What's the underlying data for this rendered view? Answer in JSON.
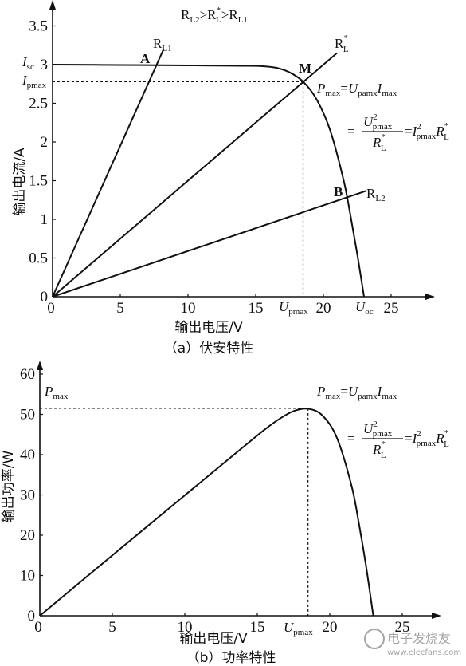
{
  "chart_data": [
    {
      "type": "line",
      "caption": "（a）伏安特性",
      "xlabel": "输出电压/V",
      "ylabel": "输出电流/A",
      "xlim": [
        0,
        27
      ],
      "ylim": [
        0,
        3.7
      ],
      "x_ticks": [
        "0",
        "5",
        "10",
        "15",
        "20",
        "25"
      ],
      "y_ticks": [
        "0",
        "0.5",
        "1",
        "1.5",
        "2",
        "2.5",
        "3",
        "3.5"
      ],
      "condition": "RL2>RL*>RL1",
      "series": [
        {
          "name": "I-V",
          "x": [
            0,
            5,
            10,
            14,
            15.5,
            16.5,
            17.5,
            18.5,
            19.5,
            20.5,
            21.5,
            22,
            22.5,
            23
          ],
          "y": [
            3.0,
            2.995,
            2.99,
            2.985,
            2.98,
            2.96,
            2.9,
            2.78,
            2.55,
            2.15,
            1.5,
            1.05,
            0.55,
            0.0
          ]
        },
        {
          "name": "RL1",
          "x": [
            0,
            8.2
          ],
          "y": [
            0,
            3.2
          ]
        },
        {
          "name": "RL*",
          "x": [
            0,
            21
          ],
          "y": [
            0,
            3.15
          ]
        },
        {
          "name": "RL2",
          "x": [
            0,
            23.2
          ],
          "y": [
            0,
            1.37
          ]
        }
      ],
      "points": [
        {
          "name": "A",
          "x": 7.7,
          "y": 3.0
        },
        {
          "name": "M",
          "x": 18.5,
          "y": 2.78
        },
        {
          "name": "B",
          "x": 22.2,
          "y": 1.3
        }
      ],
      "markers": {
        "Isc": 3.0,
        "Ipmax": 2.78,
        "Upmax": 18.5,
        "Uoc": 23.0
      }
    },
    {
      "type": "line",
      "caption": "（b）功率特性",
      "xlabel": "输出电压/V",
      "ylabel": "输出功率/W",
      "xlim": [
        0,
        27
      ],
      "ylim": [
        0,
        62
      ],
      "x_ticks": [
        "0",
        "5",
        "10",
        "15",
        "20",
        "25"
      ],
      "y_ticks": [
        "0",
        "10",
        "20",
        "30",
        "40",
        "50",
        "60"
      ],
      "series": [
        {
          "name": "P-V",
          "x": [
            0,
            5,
            10,
            14,
            15.5,
            16.5,
            17.5,
            18.5,
            19.5,
            20.5,
            21.5,
            22,
            22.5,
            23
          ],
          "y": [
            0,
            15,
            29.9,
            41.8,
            46.2,
            48.8,
            50.8,
            51.4,
            49.7,
            44.1,
            32.3,
            23.1,
            12.4,
            0
          ]
        }
      ],
      "markers": {
        "Pmax": 51.5,
        "Upmax": 18.5
      }
    }
  ],
  "text": {
    "a": {
      "condition_r1": "R",
      "condition_s1": "L2",
      "condition_r2": "R",
      "condition_s2": "L",
      "condition_r3": "R",
      "condition_s3": "L1",
      "gt": ">",
      "rl1_main": "R",
      "rl1_sub": "L1",
      "rls_main": "R",
      "rls_sub": "L",
      "star": "*",
      "rl2_main": "R",
      "rl2_sub": "L2",
      "pt_a": "A",
      "pt_m": "M",
      "pt_b": "B",
      "isc_main": "I",
      "isc_sub": "sc",
      "ipmax_main": "I",
      "ipmax_sub": "pmax",
      "upmax_main": "U",
      "upmax_sub": "pmax",
      "uoc_main": "U",
      "uoc_sub": "oc"
    },
    "formula": {
      "p": "P",
      "max": "max",
      "eq": "=",
      "u": "U",
      "pamx": "pamx",
      "i": "I",
      "pmax": "pmax",
      "two": "2",
      "r": "R",
      "l": "L",
      "star": "*"
    },
    "b": {
      "pmax_main": "P",
      "pmax_sub": "max",
      "upmax_main": "U",
      "upmax_sub": "pmax"
    },
    "watermark": {
      "line1": "电子发烧友",
      "line2": "www.elecfans.com"
    }
  }
}
